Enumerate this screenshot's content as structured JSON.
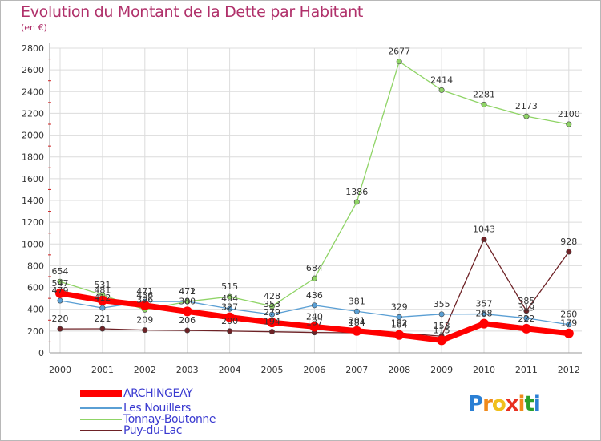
{
  "header": {
    "title": "Evolution du Montant de la Dette par Habitant",
    "unit": "(en €)"
  },
  "brand": {
    "letters": [
      "P",
      "r",
      "o",
      "x",
      "i",
      "t",
      "i"
    ],
    "colors": [
      "#2a7fd4",
      "#f08a1c",
      "#f0c01c",
      "#e83020",
      "#f08a1c",
      "#2aa02a",
      "#2a7fd4"
    ]
  },
  "chart_data": {
    "type": "line",
    "title": "Evolution du Montant de la Dette par Habitant",
    "ylabel": "(en €)",
    "xlabel": "",
    "x": [
      "2000",
      "2001",
      "2002",
      "2003",
      "2004",
      "2005",
      "2006",
      "2007",
      "2008",
      "2009",
      "2010",
      "2011",
      "2012"
    ],
    "ylim": [
      0,
      2800
    ],
    "yticks": [
      0,
      200,
      400,
      600,
      800,
      1000,
      1200,
      1400,
      1600,
      1800,
      2000,
      2200,
      2400,
      2600,
      2800
    ],
    "grid": true,
    "legend_position": "bottom-left",
    "series": [
      {
        "name": "ARCHINGEAY",
        "color": "#ff0000",
        "values": [
          547,
          481,
          436,
          380,
          327,
          279,
          240,
          201,
          164,
          115,
          268,
          222,
          179
        ]
      },
      {
        "name": "Les Nouillers",
        "color": "#5a9fd4",
        "values": [
          479,
          412,
          471,
          472,
          404,
          353,
          436,
          381,
          329,
          355,
          357,
          319,
          260
        ]
      },
      {
        "name": "Tonnay-Boutonne",
        "color": "#8fd466",
        "values": [
          654,
          531,
          396,
          471,
          515,
          428,
          684,
          1386,
          2677,
          2414,
          2281,
          2173,
          2100
        ]
      },
      {
        "name": "Puy-du-Lac",
        "color": "#6e2226",
        "values": [
          220,
          221,
          209,
          206,
          200,
          194,
          187,
          184,
          182,
          153,
          1043,
          385,
          928
        ]
      }
    ]
  }
}
